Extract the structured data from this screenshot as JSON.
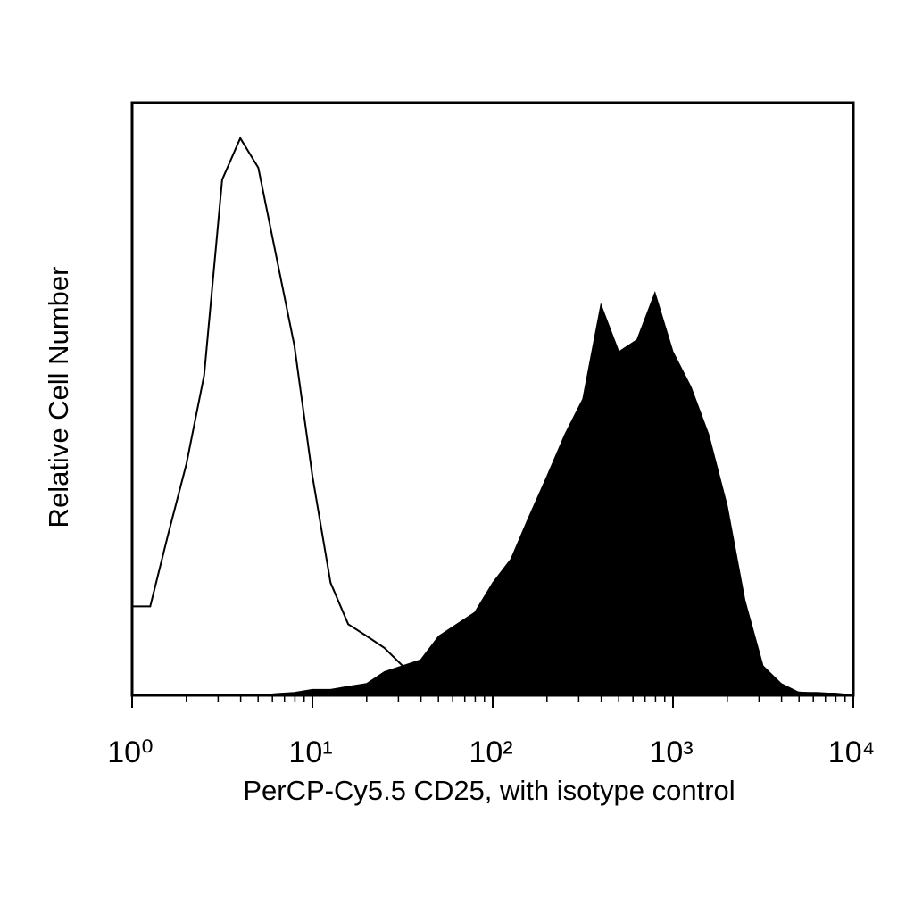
{
  "chart_data": {
    "type": "histogram-overlay",
    "x_label": "PerCP-Cy5.5 CD25, with isotype control",
    "y_label": "Relative Cell Number",
    "x_log": true,
    "xlim": [
      1,
      10000
    ],
    "xticks": [
      {
        "value": 1,
        "label": "10⁰"
      },
      {
        "value": 10,
        "label": "10¹"
      },
      {
        "value": 100,
        "label": "10²"
      },
      {
        "value": 1000,
        "label": "10³"
      },
      {
        "value": 10000,
        "label": "10⁴"
      }
    ],
    "minor_xticks": [
      2,
      3,
      4,
      5,
      6,
      7,
      8,
      9,
      20,
      30,
      40,
      50,
      60,
      70,
      80,
      90,
      200,
      300,
      400,
      500,
      600,
      700,
      800,
      900,
      2000,
      3000,
      4000,
      5000,
      6000,
      7000,
      8000,
      9000
    ],
    "ylim": [
      0,
      100
    ],
    "x": [
      1,
      1.26,
      1.58,
      2.0,
      2.51,
      3.16,
      3.98,
      5.01,
      6.31,
      7.94,
      10,
      12.6,
      15.8,
      20.0,
      25.1,
      31.6,
      39.8,
      50.1,
      63.1,
      79.4,
      100,
      126,
      158,
      200,
      251,
      316,
      398,
      501,
      631,
      794,
      1000,
      1260,
      1580,
      2000,
      2510,
      3160,
      3980,
      5010,
      6310,
      7940,
      10000
    ],
    "series": [
      {
        "style": "outline",
        "color": "#000000",
        "values": [
          15,
          15,
          27,
          39,
          54,
          87,
          94,
          89,
          74,
          59,
          37,
          19,
          12,
          10,
          8,
          5,
          3,
          2,
          1.5,
          1,
          1,
          0.5,
          0.5,
          0.5,
          0.5,
          0.5,
          0.5,
          0.5,
          0.5,
          0.5,
          0.5,
          0.5,
          0.5,
          0.5,
          0.5,
          0.5,
          0.5,
          0.5,
          0.3,
          0.3,
          0
        ]
      },
      {
        "style": "filled",
        "color": "#000000",
        "values": [
          0,
          0,
          0,
          0,
          0,
          0,
          0,
          0,
          0.3,
          0.5,
          1,
          1,
          1.5,
          2,
          4,
          5,
          6,
          10,
          12,
          14,
          19,
          23,
          30,
          37,
          44,
          50,
          66,
          58,
          60,
          68,
          58,
          52,
          44,
          32,
          16,
          5,
          2,
          0.5,
          0.5,
          0.3,
          0
        ]
      }
    ]
  }
}
